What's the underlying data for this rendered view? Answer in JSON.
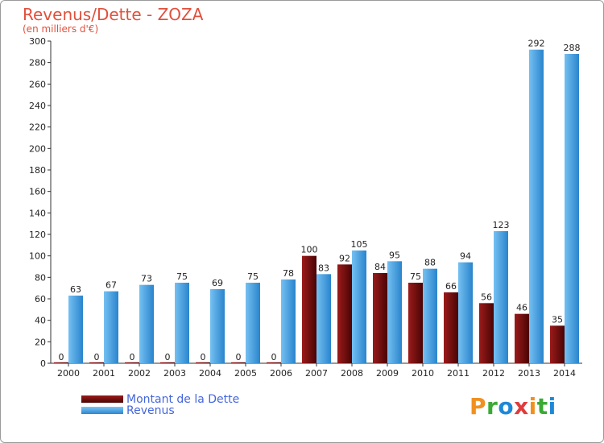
{
  "title": "Revenus/Dette - ZOZA",
  "subtitle": "(en milliers d'€)",
  "logo": {
    "text": "Proxiti",
    "letters": [
      "P",
      "r",
      "o",
      "x",
      "i",
      "t",
      "i"
    ],
    "colors": [
      "#f09020",
      "#3aaa35",
      "#1e88d8",
      "#e03c3c",
      "#f09020",
      "#3aaa35",
      "#1e88d8"
    ]
  },
  "legend": [
    {
      "label": "Montant de la Dette",
      "color": "#6e0a0a"
    },
    {
      "label": "Revenus",
      "color": "#4aa3e6"
    }
  ],
  "chart_data": {
    "type": "bar",
    "title": "Revenus/Dette - ZOZA",
    "subtitle": "(en milliers d'€)",
    "xlabel": "",
    "ylabel": "",
    "categories": [
      "2000",
      "2001",
      "2002",
      "2003",
      "2004",
      "2005",
      "2006",
      "2007",
      "2008",
      "2009",
      "2010",
      "2011",
      "2012",
      "2013",
      "2014"
    ],
    "series": [
      {
        "name": "Montant de la Dette",
        "color": "#6e0a0a",
        "values": [
          0,
          0,
          0,
          0,
          0,
          0,
          0,
          100,
          92,
          84,
          75,
          66,
          56,
          46,
          35
        ]
      },
      {
        "name": "Revenus",
        "color": "#4aa3e6",
        "values": [
          63,
          67,
          73,
          75,
          69,
          75,
          78,
          83,
          105,
          95,
          88,
          94,
          123,
          292,
          288
        ]
      }
    ],
    "ylim": [
      0,
      300
    ],
    "yticks": [
      0,
      20,
      40,
      60,
      80,
      100,
      120,
      140,
      160,
      180,
      200,
      220,
      240,
      260,
      280,
      300
    ],
    "grid": false,
    "legend_position": "bottom-left"
  }
}
